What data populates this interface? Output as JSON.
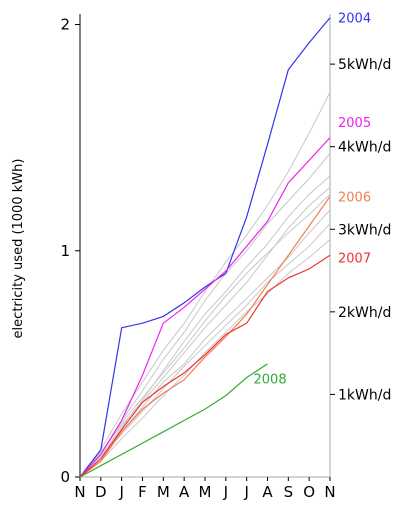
{
  "chart_data": {
    "type": "line",
    "ylabel": "electricity used (1000 kWh)",
    "ylim": [
      0,
      2.02
    ],
    "y_ticks": [
      {
        "value": 0,
        "label": "0"
      },
      {
        "value": 1,
        "label": "1"
      },
      {
        "value": 2,
        "label": "2"
      }
    ],
    "x_ticks": [
      "N",
      "D",
      "J",
      "F",
      "M",
      "A",
      "M",
      "J",
      "J",
      "A",
      "S",
      "O",
      "N"
    ],
    "rate_ticks": [
      {
        "label": "1kWh/d",
        "value": 0.365
      },
      {
        "label": "2kWh/d",
        "value": 0.73
      },
      {
        "label": "3kWh/d",
        "value": 1.095
      },
      {
        "label": "4kWh/d",
        "value": 1.46
      },
      {
        "label": "5kWh/d",
        "value": 1.825
      }
    ],
    "series": [
      {
        "name": "2004",
        "color": "#3333ee",
        "label_y": 2.03,
        "values": [
          0,
          0.12,
          0.66,
          0.68,
          0.71,
          0.77,
          0.84,
          0.9,
          1.15,
          1.47,
          1.8,
          1.92,
          2.03
        ]
      },
      {
        "name": "2005",
        "color": "#ee22ee",
        "label_y": 1.57,
        "values": [
          0,
          0.1,
          0.25,
          0.45,
          0.68,
          0.75,
          0.83,
          0.91,
          1.02,
          1.13,
          1.3,
          1.4,
          1.5
        ]
      },
      {
        "name": "2006",
        "color": "#f08050",
        "label_y": 1.24,
        "values": [
          0,
          0.07,
          0.2,
          0.3,
          0.37,
          0.43,
          0.53,
          0.62,
          0.72,
          0.85,
          0.98,
          1.11,
          1.24
        ]
      },
      {
        "name": "2007",
        "color": "#ee3333",
        "label_y": 0.97,
        "values": [
          0,
          0.08,
          0.21,
          0.33,
          0.4,
          0.46,
          0.54,
          0.63,
          0.68,
          0.82,
          0.88,
          0.92,
          0.98
        ]
      },
      {
        "name": "2008",
        "color": "#33aa33",
        "label_y": 0.43,
        "values": [
          0,
          0.05,
          0.1,
          0.15,
          0.2,
          0.25,
          0.3,
          0.36,
          0.44,
          0.5
        ]
      }
    ],
    "other_series_color": "#c8c8c8",
    "other_series": [
      {
        "values": [
          0,
          0.12,
          0.28,
          0.42,
          0.56,
          0.68,
          0.82,
          0.95,
          1.07,
          1.2,
          1.35,
          1.52,
          1.7
        ]
      },
      {
        "values": [
          0,
          0.1,
          0.25,
          0.38,
          0.52,
          0.64,
          0.78,
          0.9,
          1.0,
          1.12,
          1.22,
          1.32,
          1.43
        ]
      },
      {
        "values": [
          0,
          0.09,
          0.22,
          0.34,
          0.47,
          0.6,
          0.72,
          0.82,
          0.93,
          1.03,
          1.15,
          1.25,
          1.33
        ]
      },
      {
        "values": [
          0,
          0.11,
          0.23,
          0.33,
          0.44,
          0.55,
          0.66,
          0.76,
          0.86,
          0.98,
          1.1,
          1.2,
          1.28
        ]
      },
      {
        "values": [
          0,
          0.08,
          0.2,
          0.31,
          0.42,
          0.5,
          0.61,
          0.7,
          0.79,
          0.88,
          0.97,
          1.08,
          1.18
        ]
      },
      {
        "values": [
          0,
          0.09,
          0.19,
          0.29,
          0.39,
          0.49,
          0.58,
          0.67,
          0.76,
          0.86,
          0.94,
          1.02,
          1.12
        ]
      },
      {
        "values": [
          0,
          0.07,
          0.17,
          0.26,
          0.36,
          0.45,
          0.55,
          0.64,
          0.73,
          0.81,
          0.9,
          0.97,
          1.05
        ]
      },
      {
        "values": [
          0,
          0.1,
          0.24,
          0.35,
          0.46,
          0.57,
          0.69,
          0.8,
          0.9,
          0.99,
          1.08,
          1.16,
          1.25
        ]
      }
    ]
  }
}
